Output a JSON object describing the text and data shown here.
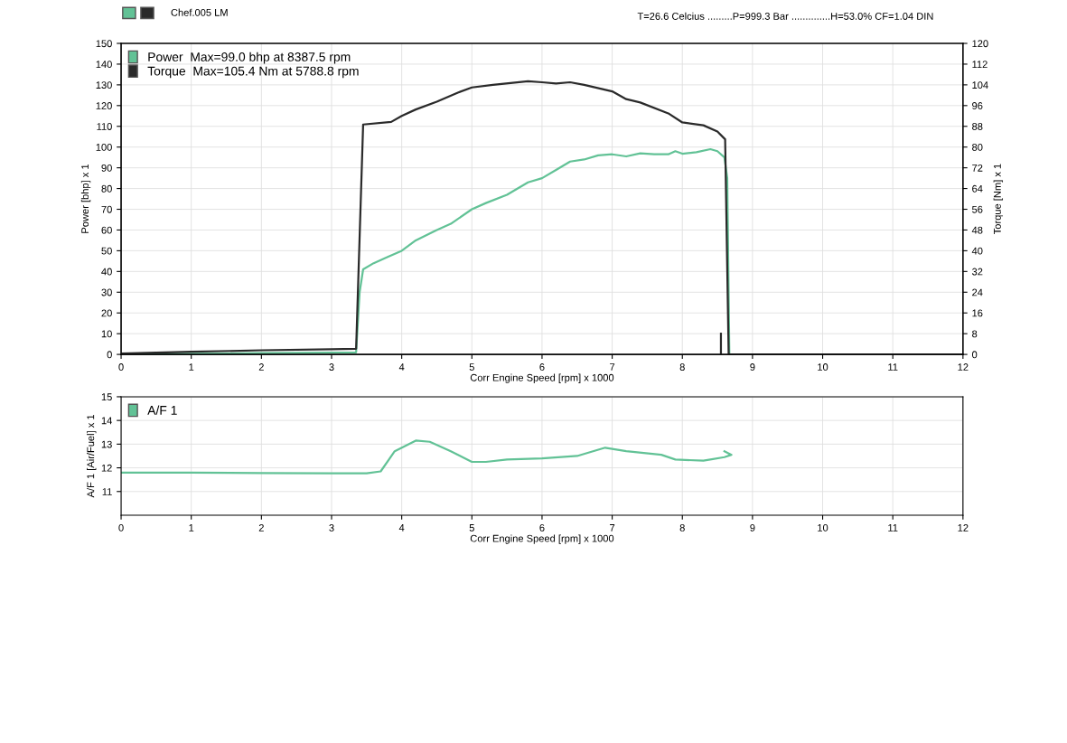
{
  "chart_data": [
    {
      "type": "line",
      "xlabel": "Corr Engine Speed [rpm] x 1000",
      "ylabel": "Power [bhp] x 1",
      "y2label": "Torque [Nm] x 1",
      "xlim": [
        0,
        12
      ],
      "xticks": [
        0,
        1,
        2,
        3,
        4,
        5,
        6,
        7,
        8,
        9,
        10,
        11,
        12
      ],
      "ylim": [
        0,
        150
      ],
      "yticks": [
        0,
        10,
        20,
        30,
        40,
        50,
        60,
        70,
        80,
        90,
        100,
        110,
        120,
        130,
        140,
        150
      ],
      "y2lim": [
        0,
        120
      ],
      "y2ticks": [
        0,
        8,
        16,
        24,
        32,
        40,
        48,
        56,
        64,
        72,
        80,
        88,
        96,
        104,
        112,
        120
      ],
      "grid": true,
      "legend": "top left",
      "annotations": [
        "Chef.005 LM",
        "T=26.6 Celcius .........P=999.3 Bar ..............H=53.0% CF=1.04 DIN"
      ],
      "series": [
        {
          "name": "Power  Max=99.0 bhp at 8387.5 rpm",
          "color": "#62c296",
          "x": [
            0,
            1,
            2,
            3,
            3.35,
            3.4,
            3.45,
            3.6,
            3.8,
            4.0,
            4.2,
            4.5,
            4.7,
            5.0,
            5.2,
            5.5,
            5.8,
            6.0,
            6.2,
            6.4,
            6.6,
            6.8,
            7.0,
            7.2,
            7.4,
            7.6,
            7.8,
            7.9,
            8.0,
            8.2,
            8.4,
            8.5,
            8.6,
            8.64,
            8.67,
            12
          ],
          "values": [
            0,
            0.3,
            0.6,
            0.9,
            1,
            30,
            41,
            44,
            47,
            50,
            55,
            60,
            63,
            70,
            73,
            77,
            83,
            85,
            89,
            93,
            94,
            96,
            96.5,
            95.5,
            97,
            96.5,
            96.5,
            98,
            96.8,
            97.5,
            99,
            98,
            95,
            85,
            0,
            0
          ]
        },
        {
          "name": "Torque  Max=105.4 Nm at 5788.8 rpm",
          "color": "#2a2a2a",
          "axis": "y2",
          "x": [
            0,
            1,
            2,
            3,
            3.35,
            3.45,
            3.85,
            4.0,
            4.2,
            4.5,
            4.8,
            5.0,
            5.3,
            5.8,
            6.0,
            6.2,
            6.4,
            6.6,
            7.0,
            7.2,
            7.4,
            7.8,
            8.0,
            8.3,
            8.5,
            8.61,
            8.66,
            12
          ],
          "values": [
            0.3,
            1,
            1.6,
            2,
            2.2,
            88.7,
            89.7,
            92,
            94.5,
            97.5,
            101,
            103,
            104,
            105.4,
            105,
            104.5,
            105,
            104,
            101.5,
            98.5,
            97.2,
            93,
            89.5,
            88.4,
            86,
            83,
            0,
            0
          ]
        },
        {
          "color": "#2a2a2a",
          "axis": "y2",
          "x": [
            8.55,
            8.55
          ],
          "values": [
            0,
            8
          ]
        }
      ]
    },
    {
      "type": "line",
      "xlabel": "Corr Engine Speed [rpm] x 1000",
      "ylabel": "A/F 1 [Air/Fuel] x 1",
      "xlim": [
        0,
        12
      ],
      "xticks": [
        0,
        1,
        2,
        3,
        4,
        5,
        6,
        7,
        8,
        9,
        10,
        11,
        12
      ],
      "ylim": [
        10,
        15
      ],
      "yticks": [
        11,
        12,
        13,
        14,
        15
      ],
      "grid": true,
      "legend": "top left",
      "series": [
        {
          "name": "A/F 1",
          "color": "#62c296",
          "x": [
            0,
            1,
            2,
            3,
            3.5,
            3.7,
            3.9,
            4.2,
            4.4,
            4.7,
            5.0,
            5.2,
            5.5,
            6.0,
            6.5,
            6.9,
            7.2,
            7.7,
            7.9,
            8.3,
            8.6,
            8.7,
            8.6
          ],
          "values": [
            11.8,
            11.8,
            11.78,
            11.77,
            11.77,
            11.85,
            12.7,
            13.15,
            13.1,
            12.7,
            12.25,
            12.25,
            12.35,
            12.4,
            12.5,
            12.85,
            12.7,
            12.55,
            12.35,
            12.3,
            12.45,
            12.55,
            12.7
          ]
        }
      ]
    }
  ]
}
